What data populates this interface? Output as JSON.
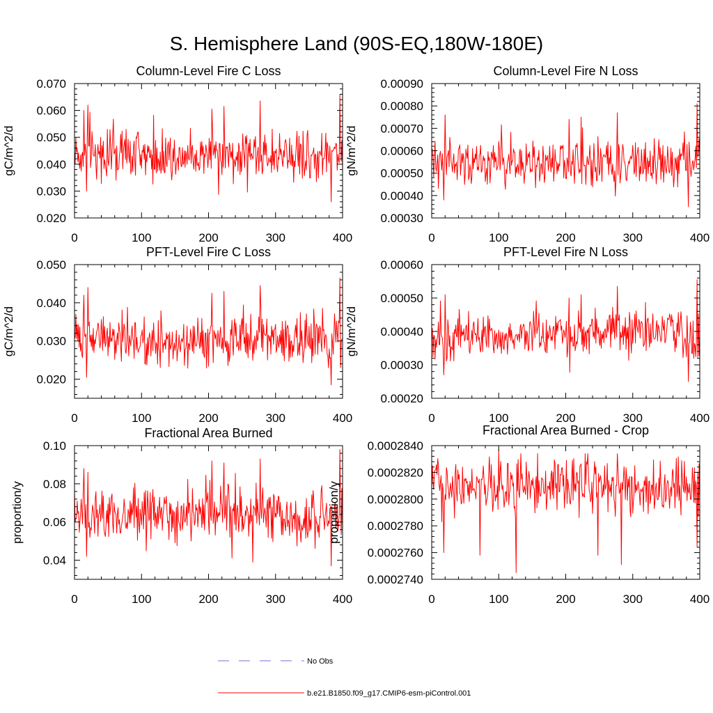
{
  "figure": {
    "title": "S. Hemisphere Land (90S-EQ,180W-180E)",
    "series_color": "#ff0000",
    "obs_color": "#6f6fd6"
  },
  "legend": {
    "entries": [
      {
        "label": "No Obs",
        "style": "dashed",
        "color": "#6f6fd6"
      },
      {
        "label": "b.e21.B1850.f09_g17.CMIP6-esm-piControl.001",
        "style": "solid",
        "color": "#ff0000"
      }
    ]
  },
  "chart_data": [
    {
      "type": "line",
      "title": "Column-Level Fire C Loss",
      "xlabel": "",
      "ylabel": "gC/m^2/d",
      "xlim": [
        0,
        400
      ],
      "ylim": [
        0.02,
        0.07
      ],
      "xticks": [
        "0",
        "100",
        "200",
        "300",
        "400"
      ],
      "yticks": [
        "0.020",
        "0.030",
        "0.040",
        "0.050",
        "0.060",
        "0.070"
      ],
      "series": [
        {
          "name": "b.e21.B1850.f09_g17.CMIP6-esm-piControl.001",
          "n_years": 400,
          "mean": 0.0435,
          "min": 0.026,
          "max": 0.066,
          "peaks": [
            [
              14,
              0.06
            ],
            [
              20,
              0.062
            ],
            [
              18,
              0.03
            ],
            [
              205,
              0.0605
            ],
            [
              223,
              0.0615
            ],
            [
              277,
              0.0635
            ],
            [
              383,
              0.026
            ],
            [
              396,
              0.066
            ]
          ]
        }
      ]
    },
    {
      "type": "line",
      "title": "Column-Level Fire N Loss",
      "xlabel": "",
      "ylabel": "gN/m^2/d",
      "xlim": [
        0,
        400
      ],
      "ylim": [
        0.0003,
        0.0009
      ],
      "xticks": [
        "0",
        "100",
        "200",
        "300",
        "400"
      ],
      "yticks": [
        "0.00030",
        "0.00040",
        "0.00050",
        "0.00060",
        "0.00070",
        "0.00080",
        "0.00090"
      ],
      "series": [
        {
          "name": "b.e21.B1850.f09_g17.CMIP6-esm-piControl.001",
          "n_years": 400,
          "mean": 0.00055,
          "min": 0.00035,
          "max": 0.00081,
          "peaks": [
            [
              20,
              0.00076
            ],
            [
              18,
              0.00038
            ],
            [
              205,
              0.00074
            ],
            [
              223,
              0.00075
            ],
            [
              277,
              0.00077
            ],
            [
              383,
              0.00035
            ],
            [
              396,
              0.00081
            ]
          ]
        }
      ]
    },
    {
      "type": "line",
      "title": "PFT-Level Fire C Loss",
      "xlabel": "",
      "ylabel": "gC/m^2/d",
      "xlim": [
        0,
        400
      ],
      "ylim": [
        0.015,
        0.05
      ],
      "xticks": [
        "0",
        "100",
        "200",
        "300",
        "400"
      ],
      "yticks": [
        "0.020",
        "0.030",
        "0.040",
        "0.050"
      ],
      "series": [
        {
          "name": "b.e21.B1850.f09_g17.CMIP6-esm-piControl.001",
          "n_years": 400,
          "mean": 0.0305,
          "min": 0.0185,
          "max": 0.0465,
          "peaks": [
            [
              14,
              0.042
            ],
            [
              20,
              0.044
            ],
            [
              18,
              0.0205
            ],
            [
              205,
              0.0425
            ],
            [
              223,
              0.043
            ],
            [
              277,
              0.0445
            ],
            [
              383,
              0.0185
            ],
            [
              396,
              0.0465
            ]
          ]
        }
      ]
    },
    {
      "type": "line",
      "title": "PFT-Level Fire N Loss",
      "xlabel": "",
      "ylabel": "gN/m^2/d",
      "xlim": [
        0,
        400
      ],
      "ylim": [
        0.0002,
        0.0006
      ],
      "xticks": [
        "0",
        "100",
        "200",
        "300",
        "400"
      ],
      "yticks": [
        "0.00020",
        "0.00030",
        "0.00040",
        "0.00050",
        "0.00060"
      ],
      "series": [
        {
          "name": "b.e21.B1850.f09_g17.CMIP6-esm-piControl.001",
          "n_years": 400,
          "mean": 0.00039,
          "min": 0.00025,
          "max": 0.000555,
          "peaks": [
            [
              20,
              0.00051
            ],
            [
              18,
              0.00027
            ],
            [
              205,
              0.0005
            ],
            [
              223,
              0.00051
            ],
            [
              277,
              0.000535
            ],
            [
              383,
              0.00025
            ],
            [
              396,
              0.000555
            ]
          ]
        }
      ]
    },
    {
      "type": "line",
      "title": "Fractional Area Burned",
      "xlabel": "",
      "ylabel": "proportion/y",
      "xlim": [
        0,
        400
      ],
      "ylim": [
        0.03,
        0.1
      ],
      "xticks": [
        "0",
        "100",
        "200",
        "300",
        "400"
      ],
      "yticks": [
        "0.04",
        "0.06",
        "0.08",
        "0.10"
      ],
      "series": [
        {
          "name": "b.e21.B1850.f09_g17.CMIP6-esm-piControl.001",
          "n_years": 400,
          "mean": 0.063,
          "min": 0.037,
          "max": 0.098,
          "peaks": [
            [
              14,
              0.088
            ],
            [
              20,
              0.086
            ],
            [
              18,
              0.042
            ],
            [
              205,
              0.092
            ],
            [
              223,
              0.091
            ],
            [
              277,
              0.093
            ],
            [
              383,
              0.037
            ],
            [
              396,
              0.098
            ]
          ]
        }
      ]
    },
    {
      "type": "line",
      "title": "Fractional Area Burned - Crop",
      "xlabel": "",
      "ylabel": "proportion/y",
      "xlim": [
        0,
        400
      ],
      "ylim": [
        0.000274,
        0.000284
      ],
      "xticks": [
        "0",
        "100",
        "200",
        "300",
        "400"
      ],
      "yticks": [
        "0.0002740",
        "0.0002760",
        "0.0002780",
        "0.0002800",
        "0.0002820",
        "0.0002840"
      ],
      "series": [
        {
          "name": "b.e21.B1850.f09_g17.CMIP6-esm-piControl.001",
          "n_years": 400,
          "mean": 0.000281,
          "min": 0.0002745,
          "max": 0.0002837,
          "peaks": [
            [
              100,
              0.0002837
            ],
            [
              126,
              0.0002745
            ],
            [
              72,
              0.0002758
            ],
            [
              18,
              0.000276
            ],
            [
              248,
              0.0002758
            ],
            [
              283,
              0.0002751
            ],
            [
              396,
              0.0002764
            ]
          ]
        }
      ]
    }
  ]
}
